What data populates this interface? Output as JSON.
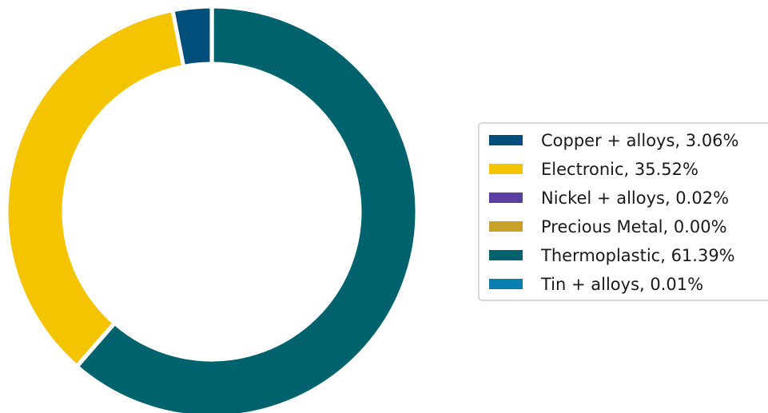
{
  "chart_data": {
    "type": "pie",
    "style": "donut",
    "title": "",
    "categories": [
      "Copper + alloys",
      "Electronic",
      "Nickel + alloys",
      "Precious Metal",
      "Thermoplastic",
      "Tin + alloys"
    ],
    "values": [
      3.06,
      35.52,
      0.02,
      0.0,
      61.39,
      0.01
    ],
    "colors": [
      "#004f7a",
      "#f5c400",
      "#5b3fa0",
      "#c8a22a",
      "#00626d",
      "#0a7eb0"
    ],
    "legend_labels": [
      "Copper + alloys, 3.06%",
      "Electronic, 35.52%",
      "Nickel + alloys, 0.02%",
      "Precious Metal, 0.00%",
      "Thermoplastic, 61.39%",
      "Tin + alloys, 0.01%"
    ],
    "legend": "right",
    "start_angle_deg": 90,
    "direction": "counterclockwise",
    "unit": "%"
  }
}
